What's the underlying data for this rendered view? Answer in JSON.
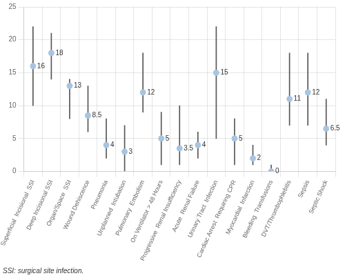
{
  "chart_data": {
    "type": "dot",
    "categories": [
      "Superficial  Incisional  SSI",
      "Deep Incisional SSI",
      "Organ/Space  SSI",
      "Wound Dehiscence",
      "Pneumonia",
      "Unplanned  Intubation",
      "Pulmonary  Embolism",
      "On Ventilator > 48 Hours",
      "Progressive  Renal Insufficiency",
      "Acute  Renal Failure",
      "Urinary Tract  Infection",
      "Cardiac Arrest  Requiring CPR",
      "Myocardial  Infarction",
      "Bleeding  Transfusions",
      "DVT/Thrombophlebitis",
      "Sepsis",
      "Septic Shock"
    ],
    "values": [
      16,
      18,
      13,
      8.5,
      4,
      3,
      12,
      5,
      3.5,
      4,
      15,
      5,
      2,
      0,
      11,
      12,
      6.5
    ],
    "lower": [
      10,
      14,
      8,
      6,
      2,
      0,
      9,
      1,
      1,
      2,
      5,
      1,
      1,
      0,
      7,
      7,
      4
    ],
    "upper": [
      22,
      21,
      14,
      13,
      8,
      7,
      18,
      9,
      10,
      6,
      22,
      8,
      4,
      1,
      18,
      18,
      11
    ],
    "color": "#a8c4e0",
    "ylim": [
      0,
      25
    ],
    "yticks": [
      0,
      5,
      10,
      15,
      20,
      25
    ],
    "grid": true,
    "data_labels": true,
    "footnote": "SSI: surgical site infection."
  }
}
